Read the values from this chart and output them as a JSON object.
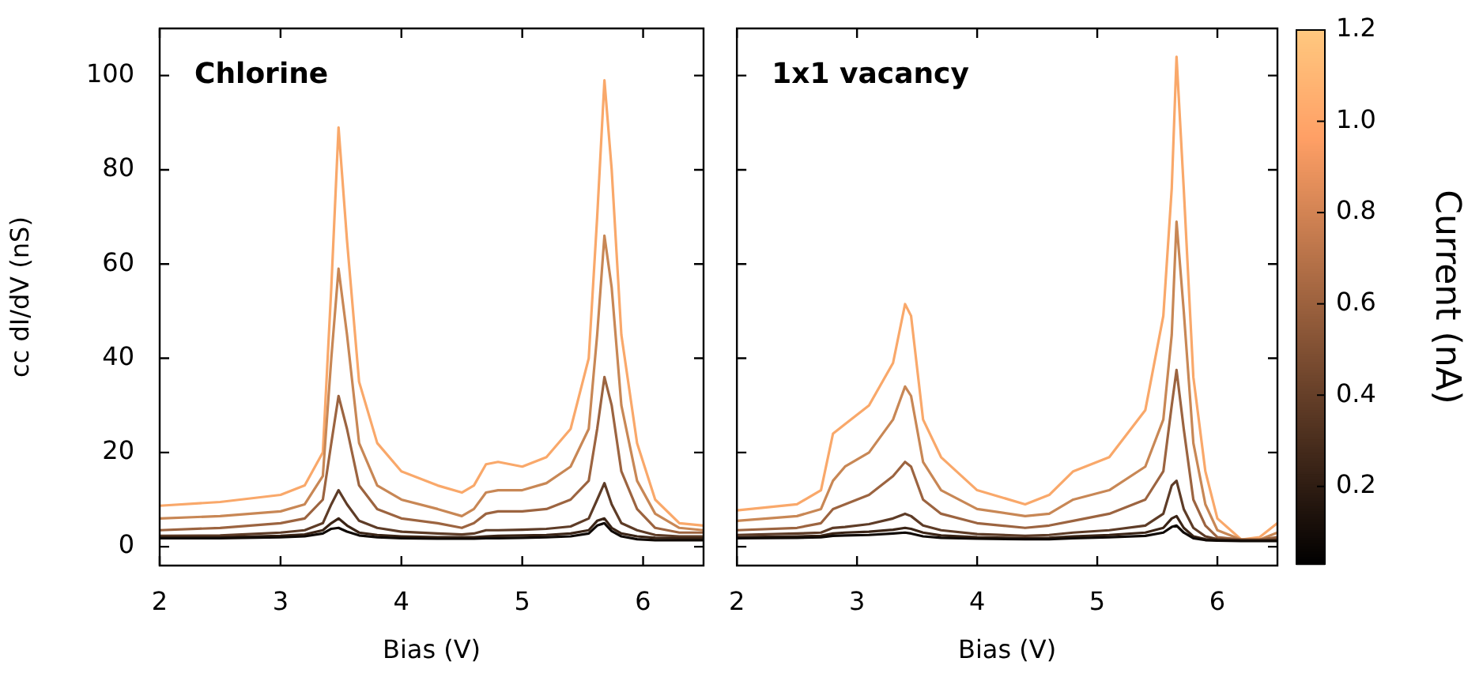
{
  "chart_data": [
    {
      "type": "line",
      "title": "Chlorine",
      "xlabel": "Bias (V)",
      "ylabel": "cc dI/dV (nS)",
      "xlim": [
        2,
        6.5
      ],
      "xticks": [
        2,
        3,
        4,
        5,
        6
      ],
      "ylim": [
        -4,
        110
      ],
      "yticks": [
        0,
        20,
        40,
        60,
        80,
        100
      ],
      "grid": false,
      "legend": false,
      "marker": "none",
      "line_style": "solid",
      "x": [
        2,
        2.5,
        3,
        3.2,
        3.35,
        3.42,
        3.48,
        3.55,
        3.65,
        3.8,
        4.0,
        4.3,
        4.5,
        4.6,
        4.7,
        4.8,
        5.0,
        5.2,
        5.4,
        5.55,
        5.62,
        5.68,
        5.74,
        5.82,
        5.95,
        6.1,
        6.3,
        6.5
      ],
      "series": [
        {
          "color": "#100a06",
          "values": [
            1.8,
            1.8,
            2,
            2.2,
            2.8,
            3.8,
            4,
            3.2,
            2.4,
            2,
            1.8,
            1.7,
            1.7,
            1.7,
            1.8,
            1.8,
            1.9,
            2,
            2.2,
            2.8,
            4.5,
            5,
            3.3,
            2.2,
            1.6,
            1.4,
            1.4,
            1.4
          ]
        },
        {
          "color": "#3a2416",
          "values": [
            2,
            2,
            2.3,
            2.6,
            3.5,
            5,
            6,
            4.5,
            3,
            2.5,
            2.2,
            2,
            2,
            2,
            2.2,
            2.3,
            2.4,
            2.5,
            2.8,
            3.5,
            5.5,
            6,
            4,
            2.8,
            2.2,
            1.9,
            1.8,
            1.8
          ]
        },
        {
          "color": "#5e3c27",
          "values": [
            2.3,
            2.4,
            3,
            3.5,
            5,
            9,
            12,
            9,
            5.5,
            4,
            3.2,
            2.8,
            2.6,
            2.8,
            3.5,
            3.5,
            3.6,
            3.8,
            4.3,
            6,
            10,
            13.5,
            9,
            5,
            3.5,
            2.5,
            2.2,
            2.2
          ]
        },
        {
          "color": "#9c6440",
          "values": [
            3.5,
            4,
            5,
            6,
            10,
            22,
            32,
            25,
            13,
            8,
            6,
            5,
            4,
            5,
            7,
            7.5,
            7.5,
            8,
            10,
            14,
            25,
            36,
            30,
            16,
            8,
            4,
            3,
            3
          ]
        },
        {
          "color": "#c88755",
          "values": [
            6,
            6.5,
            7.5,
            9,
            15,
            40,
            59,
            45,
            22,
            13,
            10,
            8,
            6.5,
            8,
            11.5,
            12,
            12,
            13.5,
            17,
            25,
            45,
            66,
            55,
            30,
            14,
            7,
            4,
            3.5
          ]
        },
        {
          "color": "#f9a86a",
          "values": [
            8.7,
            9.5,
            11,
            13,
            20,
            55,
            89,
            65,
            35,
            22,
            16,
            13,
            11.5,
            13,
            17.5,
            18,
            17,
            19,
            25,
            40,
            70,
            99,
            80,
            45,
            22,
            10,
            5,
            4.5
          ]
        }
      ]
    },
    {
      "type": "line",
      "title": "1x1 vacancy",
      "xlabel": "Bias (V)",
      "xlim": [
        2,
        6.5
      ],
      "xticks": [
        2,
        3,
        4,
        5,
        6
      ],
      "ylim": [
        -4,
        110
      ],
      "yticks": [
        0,
        20,
        40,
        60,
        80,
        100
      ],
      "tick_labels": "x",
      "grid": false,
      "legend": false,
      "marker": "none",
      "line_style": "solid",
      "clabel": "Current (nA)",
      "clim": [
        0.03,
        1.2
      ],
      "cticks": [
        0.2,
        0.4,
        0.6,
        0.8,
        {
          "value": 1,
          "label": "1.0"
        },
        1.2
      ],
      "x": [
        2,
        2.5,
        2.7,
        2.8,
        2.9,
        3.1,
        3.3,
        3.4,
        3.45,
        3.55,
        3.7,
        4.0,
        4.4,
        4.6,
        4.8,
        5.1,
        5.4,
        5.55,
        5.62,
        5.66,
        5.72,
        5.8,
        5.9,
        6.0,
        6.2,
        6.35,
        6.5
      ],
      "series": [
        {
          "color": "#100a06",
          "values": [
            1.8,
            1.9,
            2,
            2.3,
            2.4,
            2.5,
            2.8,
            3,
            2.8,
            2.2,
            1.9,
            1.7,
            1.6,
            1.6,
            1.8,
            2,
            2.3,
            3,
            4.2,
            4.5,
            3,
            1.8,
            1.4,
            1.3,
            1.2,
            1.2,
            1.2
          ]
        },
        {
          "color": "#3a2416",
          "values": [
            2,
            2.2,
            2.3,
            2.8,
            3,
            3.2,
            3.6,
            4,
            3.8,
            3,
            2.4,
            2,
            1.8,
            1.9,
            2.2,
            2.5,
            3,
            4,
            6,
            6.5,
            4,
            2.2,
            1.6,
            1.4,
            1.3,
            1.3,
            1.3
          ]
        },
        {
          "color": "#5e3c27",
          "values": [
            2.5,
            2.8,
            3,
            4,
            4.2,
            4.8,
            6,
            7,
            6.5,
            4.5,
            3.5,
            2.7,
            2.3,
            2.5,
            3,
            3.5,
            4.5,
            7,
            13,
            14,
            8,
            4,
            2.2,
            1.6,
            1.4,
            1.4,
            1.5
          ]
        },
        {
          "color": "#9c6440",
          "values": [
            3.5,
            4,
            5,
            8,
            9,
            11,
            15,
            18,
            17,
            10,
            7,
            5,
            4,
            4.5,
            5.5,
            7,
            10,
            16,
            30,
            37.5,
            25,
            10,
            4.5,
            2,
            1.5,
            1.5,
            2
          ]
        },
        {
          "color": "#c88755",
          "values": [
            5.5,
            6.5,
            8,
            14,
            17,
            20,
            27,
            34,
            32,
            18,
            12,
            8,
            6.5,
            7,
            10,
            12,
            17,
            27,
            45,
            69,
            50,
            22,
            9,
            3.5,
            1.5,
            1.5,
            3
          ]
        },
        {
          "color": "#f9a86a",
          "values": [
            7.7,
            9,
            12,
            24,
            26,
            30,
            39,
            51.5,
            49,
            27,
            19,
            12,
            9,
            11,
            16,
            19,
            29,
            49,
            76,
            104,
            76,
            36,
            16,
            6,
            1.5,
            2,
            5
          ]
        }
      ]
    }
  ]
}
